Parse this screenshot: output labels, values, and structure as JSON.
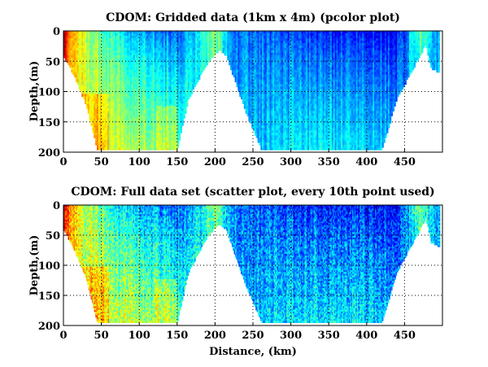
{
  "chart_data": [
    {
      "type": "heatmap",
      "title": "CDOM: Gridded data (1km x 4m) (pcolor plot)",
      "xlabel": "",
      "ylabel": "Depth,(m)",
      "xlim": [
        0,
        500
      ],
      "ylim": [
        200,
        0
      ],
      "xticks": [
        0,
        50,
        100,
        150,
        200,
        250,
        300,
        350,
        400,
        450
      ],
      "yticks": [
        0,
        50,
        100,
        150,
        200
      ],
      "grid": true,
      "colormap": "jet",
      "seafloor_depth_profile": {
        "distance_km": [
          0,
          5,
          15,
          30,
          45,
          150,
          165,
          190,
          205,
          215,
          240,
          262,
          420,
          440,
          470,
          478,
          485,
          500
        ],
        "depth_m": [
          40,
          50,
          75,
          120,
          195,
          195,
          110,
          50,
          30,
          40,
          130,
          195,
          195,
          110,
          40,
          20,
          60,
          70
        ]
      },
      "cdom_value_profile": {
        "distance_km": [
          0,
          10,
          30,
          50,
          90,
          130,
          150,
          170,
          200,
          220,
          260,
          300,
          350,
          400,
          440,
          470,
          500
        ],
        "surface_value": [
          0.95,
          0.7,
          0.55,
          0.45,
          0.3,
          0.25,
          0.2,
          0.3,
          0.55,
          0.25,
          0.22,
          0.18,
          0.15,
          0.15,
          0.12,
          0.5,
          0.2
        ],
        "bottom_value": [
          0.8,
          0.65,
          0.6,
          0.6,
          0.55,
          0.5,
          0.45,
          0.4,
          0.4,
          0.3,
          0.32,
          0.35,
          0.36,
          0.35,
          0.3,
          0.3,
          0.3
        ]
      }
    },
    {
      "type": "scatter",
      "title": "CDOM: Full data set (scatter plot, every 10th point used)",
      "xlabel": "Distance, (km)",
      "ylabel": "Depth,(m)",
      "xlim": [
        0,
        500
      ],
      "ylim": [
        200,
        0
      ],
      "xticks": [
        0,
        50,
        100,
        150,
        200,
        250,
        300,
        350,
        400,
        450
      ],
      "yticks": [
        0,
        50,
        100,
        150,
        200
      ],
      "grid": true,
      "colormap": "jet"
    }
  ]
}
